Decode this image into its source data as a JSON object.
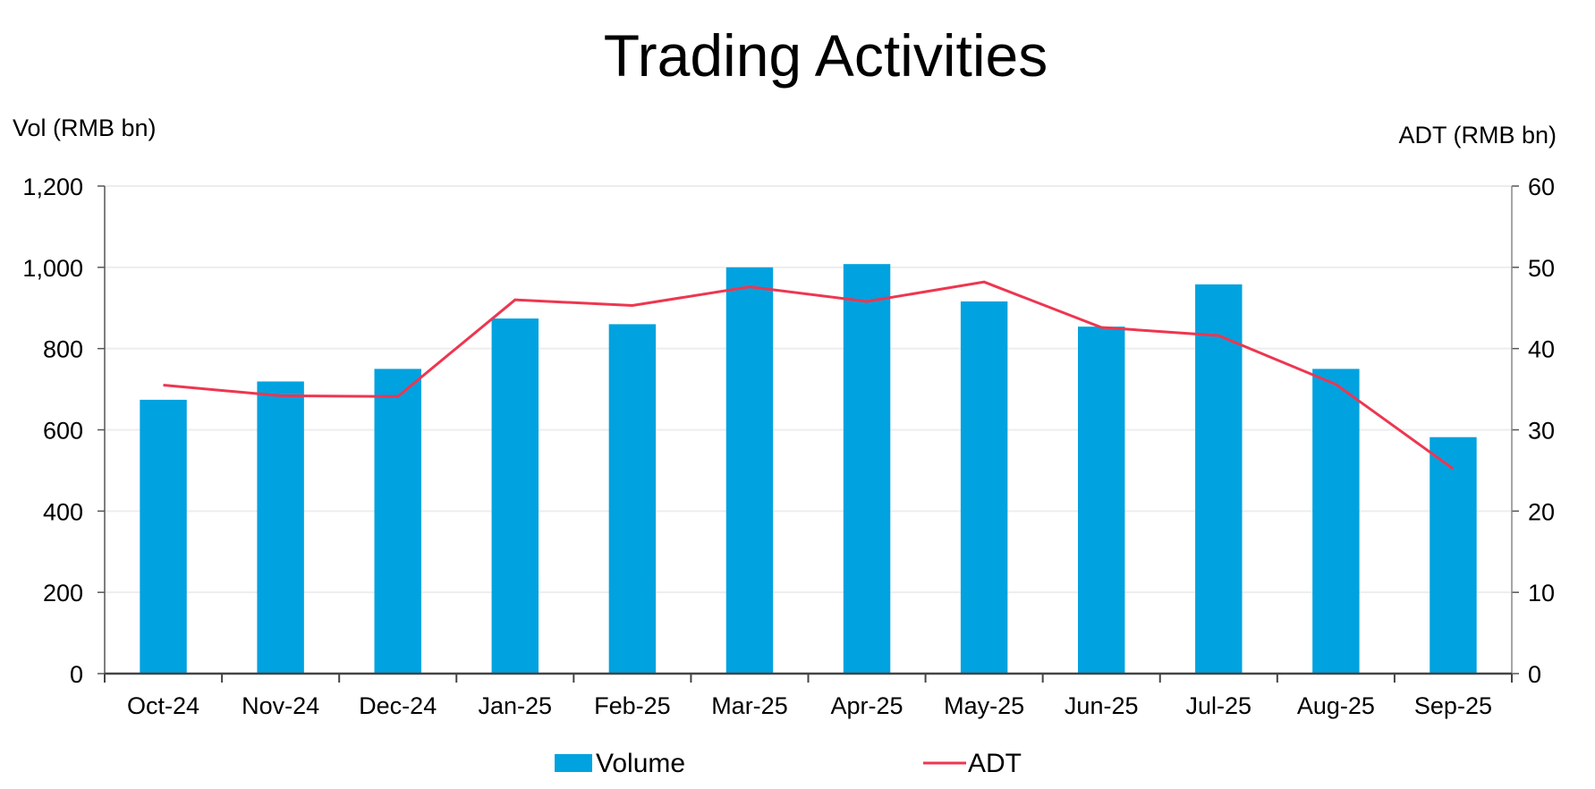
{
  "chart_data": {
    "type": "bar+line",
    "title": "Trading Activities",
    "ylabel_left": "Vol (RMB bn)",
    "ylabel_right": "ADT (RMB bn)",
    "categories": [
      "Oct-24",
      "Nov-24",
      "Dec-24",
      "Jan-25",
      "Feb-25",
      "Mar-25",
      "Apr-25",
      "May-25",
      "Jun-25",
      "Jul-25",
      "Aug-25",
      "Sep-25"
    ],
    "ylim_left": [
      0,
      1200
    ],
    "yticks_left": [
      0,
      200,
      400,
      600,
      800,
      1000,
      1200
    ],
    "ytick_labels_left": [
      "0",
      "200",
      "400",
      "600",
      "800",
      "1,000",
      "1,200"
    ],
    "ylim_right": [
      0,
      60
    ],
    "yticks_right": [
      0,
      10,
      20,
      30,
      40,
      50,
      60
    ],
    "ytick_labels_right": [
      "0",
      "10",
      "20",
      "30",
      "40",
      "50",
      "60"
    ],
    "grid": true,
    "legend_position": "bottom",
    "series": [
      {
        "name": "Volume",
        "type": "bar",
        "axis": "left",
        "color": "#00A2DF",
        "values": [
          674,
          719,
          750,
          874,
          860,
          1000,
          1008,
          916,
          854,
          958,
          750,
          582
        ]
      },
      {
        "name": "ADT",
        "type": "line",
        "axis": "right",
        "color": "#EE3650",
        "values": [
          35.5,
          34.2,
          34.1,
          46.0,
          45.3,
          47.6,
          45.8,
          48.2,
          42.6,
          41.6,
          35.6,
          25.2
        ]
      }
    ]
  }
}
